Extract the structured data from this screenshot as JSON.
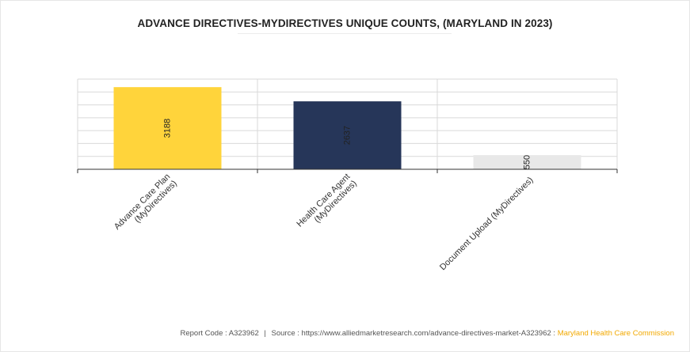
{
  "title": "ADVANCE DIRECTIVES-MYDIRECTIVES UNIQUE COUNTS, (MARYLAND IN 2023)",
  "chart_data": {
    "type": "bar",
    "title": "ADVANCE DIRECTIVES-MYDIRECTIVES UNIQUE COUNTS, (MARYLAND IN 2023)",
    "categories": [
      [
        "Advance Care Plan",
        "(MyDirectives)"
      ],
      [
        "Health Care Agent",
        "(MyDirectives)"
      ],
      [
        "Document Upload (MyDirectives)"
      ]
    ],
    "values": [
      3188,
      2637,
      550
    ],
    "value_labels": [
      "3188",
      "2637",
      "550"
    ],
    "bar_colors": [
      "#ffd43b",
      "#263659",
      "#e8e8e8"
    ],
    "ylim": [
      0,
      3500
    ],
    "grid": true,
    "legend": "none"
  },
  "footer": {
    "report_code": "Report Code : A323962",
    "separator": "|",
    "source": "Source : https://www.alliedmarketresearch.com/advance-directives-market-A323962 :",
    "source_org": "Maryland Health Care Commission"
  }
}
